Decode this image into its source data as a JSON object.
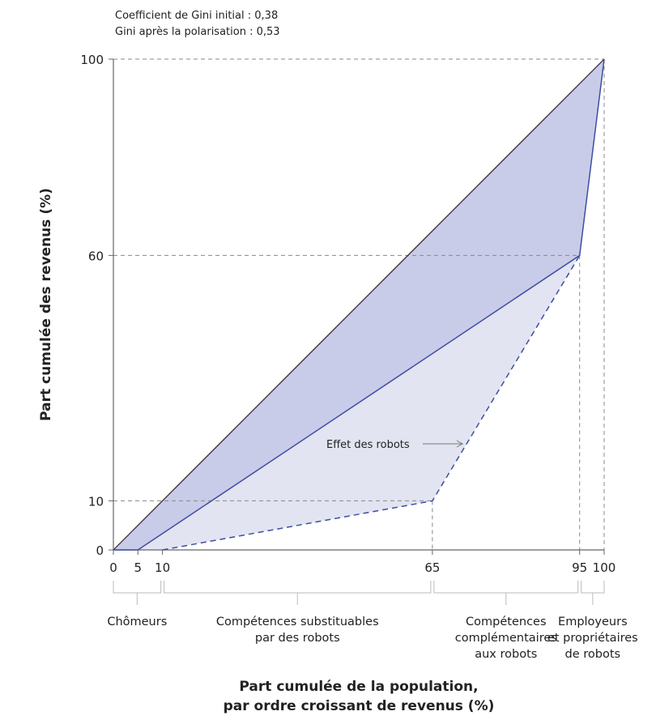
{
  "chart_data": {
    "type": "line",
    "annotations_top": [
      "Coefficient de Gini initial : 0,38",
      "Gini après la polarisation : 0,53"
    ],
    "xlabel": [
      "Part cumulée de la population,",
      "par ordre croissant de revenus (%)"
    ],
    "ylabel": "Part cumulée des revenus (%)",
    "xlim": [
      0,
      100
    ],
    "ylim": [
      0,
      100
    ],
    "x_ticks": [
      0,
      5,
      10,
      65,
      95,
      100
    ],
    "y_ticks": [
      0,
      10,
      60,
      100
    ],
    "series": [
      {
        "style": "equality",
        "color": "#222222",
        "points": [
          [
            0,
            0
          ],
          [
            100,
            100
          ]
        ]
      },
      {
        "style": "solid",
        "color": "#3d4fa0",
        "points": [
          [
            0,
            0
          ],
          [
            5,
            0
          ],
          [
            95,
            60
          ],
          [
            100,
            100
          ]
        ]
      },
      {
        "style": "dashed",
        "color": "#3d4fa0",
        "points": [
          [
            10,
            0
          ],
          [
            65,
            10
          ],
          [
            95,
            60
          ]
        ]
      }
    ],
    "fills": {
      "initial": "#c9cce8",
      "after": "#e2e4f1"
    },
    "arrow_label": "Effet des robots",
    "groups": [
      {
        "from": 0,
        "to": 10,
        "label": [
          "Chômeurs"
        ]
      },
      {
        "from": 10,
        "to": 65,
        "label": [
          "Compétences substituables",
          "par des robots"
        ]
      },
      {
        "from": 65,
        "to": 95,
        "label": [
          "Compétences",
          "complémentaires",
          "aux robots"
        ]
      },
      {
        "from": 95,
        "to": 100,
        "label": [
          "Employeurs",
          "et propriétaires",
          "de robots"
        ]
      }
    ]
  }
}
